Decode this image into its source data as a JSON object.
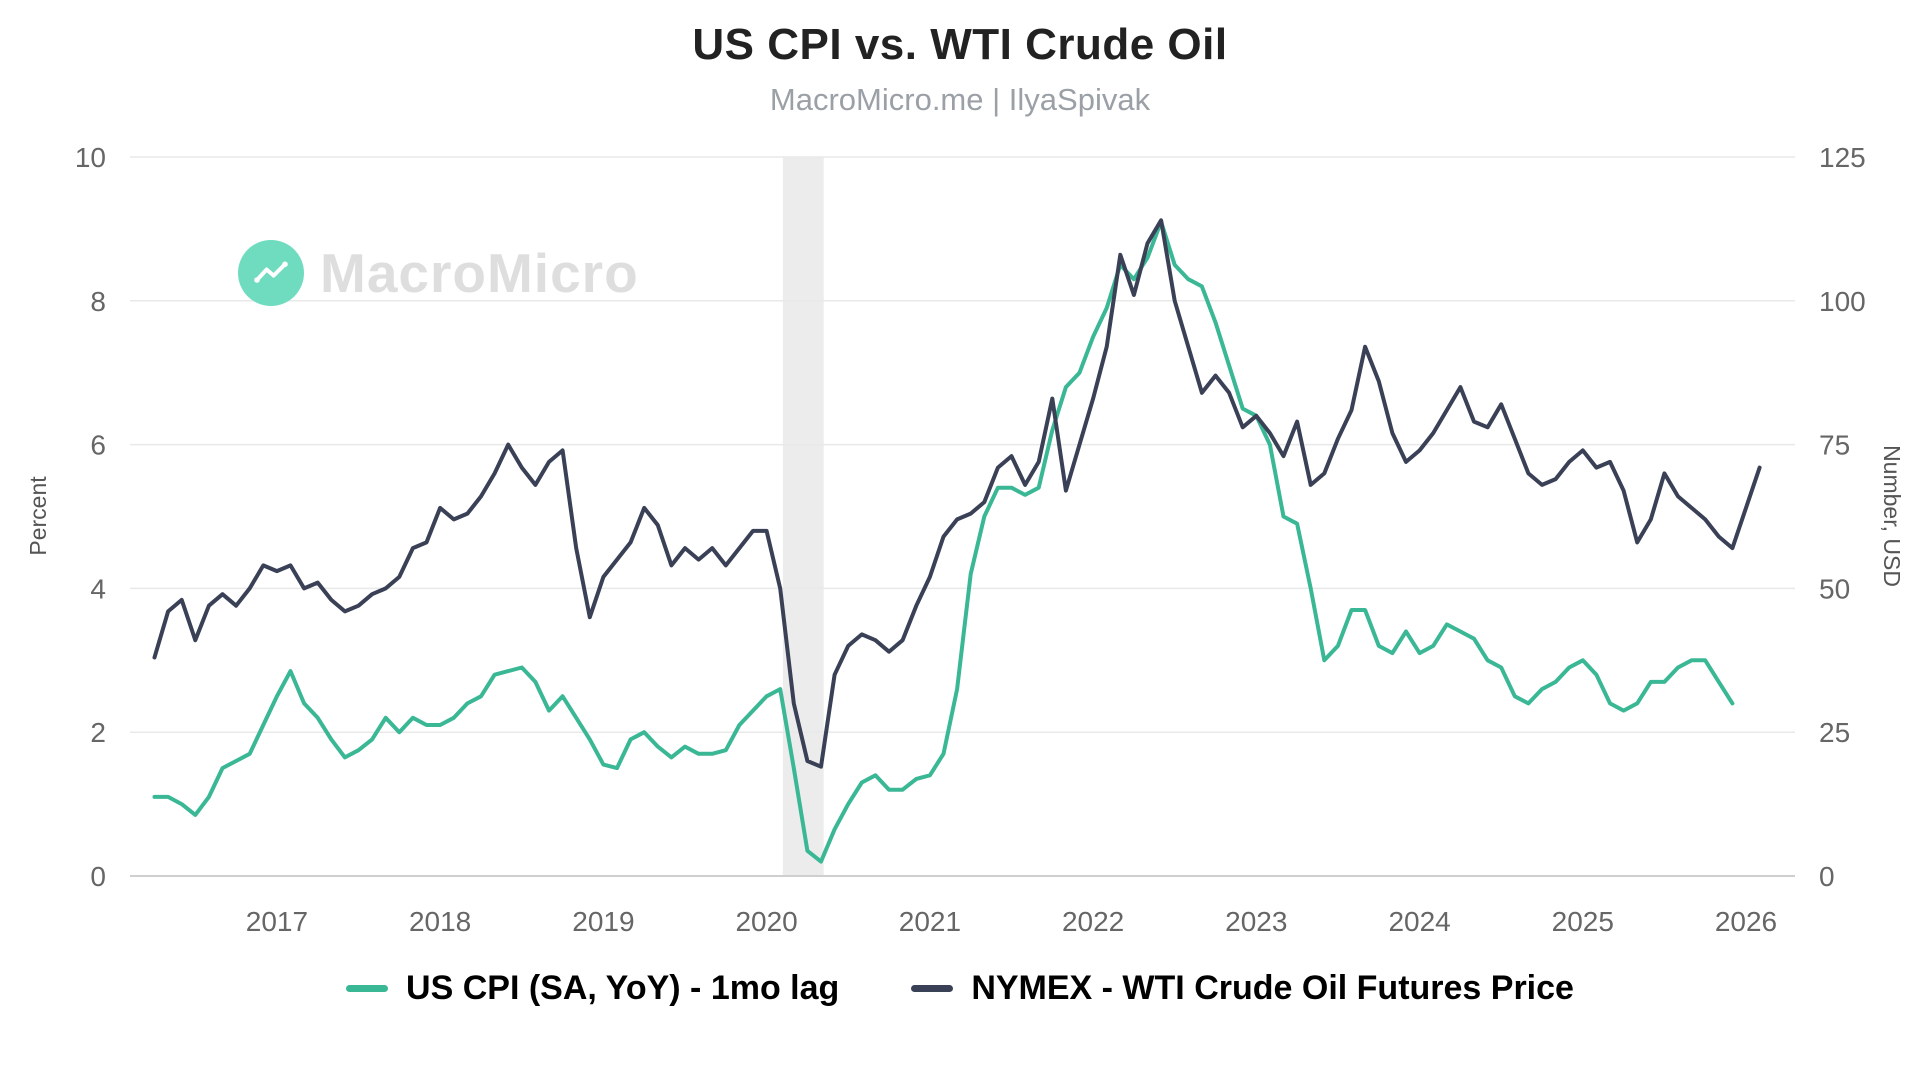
{
  "header": {
    "title": "US CPI vs. WTI Crude Oil",
    "subtitle": "MacroMicro.me | IlyaSpivak"
  },
  "watermark": {
    "text": "MacroMicro"
  },
  "legend": [
    {
      "label": "US CPI (SA, YoY) - 1mo lag",
      "color": "#3ab795"
    },
    {
      "label": "NYMEX - WTI Crude Oil Futures Price",
      "color": "#3a4156"
    }
  ],
  "chart_data": {
    "type": "line",
    "title": "US CPI vs. WTI Crude Oil",
    "subtitle": "MacroMicro.me | IlyaSpivak",
    "grid": "horizontal",
    "legend_position": "bottom",
    "x_range": [
      2016.1,
      2026.3
    ],
    "x_ticks": [
      2017,
      2018,
      2019,
      2020,
      2021,
      2022,
      2023,
      2024,
      2025,
      2026
    ],
    "left_axis": {
      "label": "Percent",
      "range": [
        0,
        10
      ],
      "ticks": [
        0,
        2,
        4,
        6,
        8,
        10
      ]
    },
    "right_axis": {
      "label": "Number, USD",
      "range": [
        0,
        125
      ],
      "ticks": [
        0,
        25,
        50,
        75,
        100,
        125
      ]
    },
    "shaded_region": {
      "x_start": 2020.1,
      "x_end": 2020.35,
      "color": "#ececec"
    },
    "series": [
      {
        "name": "US CPI (SA, YoY) - 1mo lag",
        "axis": "left",
        "color": "#3ab795",
        "x_start": 2016.25,
        "interval_years": 0.08333,
        "values": [
          1.1,
          1.1,
          1.0,
          0.85,
          1.1,
          1.5,
          1.6,
          1.7,
          2.1,
          2.5,
          2.85,
          2.4,
          2.2,
          1.9,
          1.65,
          1.75,
          1.9,
          2.2,
          2.0,
          2.2,
          2.1,
          2.1,
          2.2,
          2.4,
          2.5,
          2.8,
          2.85,
          2.9,
          2.7,
          2.3,
          2.5,
          2.2,
          1.9,
          1.55,
          1.5,
          1.9,
          2.0,
          1.8,
          1.65,
          1.8,
          1.7,
          1.7,
          1.75,
          2.1,
          2.3,
          2.5,
          2.6,
          1.5,
          0.35,
          0.2,
          0.65,
          1.0,
          1.3,
          1.4,
          1.2,
          1.2,
          1.35,
          1.4,
          1.7,
          2.6,
          4.2,
          5.0,
          5.4,
          5.4,
          5.3,
          5.4,
          6.2,
          6.8,
          7.0,
          7.5,
          7.9,
          8.5,
          8.3,
          8.6,
          9.1,
          8.5,
          8.3,
          8.2,
          7.7,
          7.1,
          6.5,
          6.4,
          6.0,
          5.0,
          4.9,
          4.0,
          3.0,
          3.2,
          3.7,
          3.7,
          3.2,
          3.1,
          3.4,
          3.1,
          3.2,
          3.5,
          3.4,
          3.3,
          3.0,
          2.9,
          2.5,
          2.4,
          2.6,
          2.7,
          2.9,
          3.0,
          2.8,
          2.4,
          2.3,
          2.4,
          2.7,
          2.7,
          2.9,
          3.0,
          3.0,
          2.7,
          2.4
        ]
      },
      {
        "name": "NYMEX - WTI Crude Oil Futures Price",
        "axis": "right",
        "color": "#3a4156",
        "x_start": 2016.25,
        "interval_years": 0.08333,
        "values": [
          38,
          46,
          48,
          41,
          47,
          49,
          47,
          50,
          54,
          53,
          54,
          50,
          51,
          48,
          46,
          47,
          49,
          50,
          52,
          57,
          58,
          64,
          62,
          63,
          66,
          70,
          75,
          71,
          68,
          72,
          74,
          57,
          45,
          52,
          55,
          58,
          64,
          61,
          54,
          57,
          55,
          57,
          54,
          57,
          60,
          60,
          50,
          30,
          20,
          19,
          35,
          40,
          42,
          41,
          39,
          41,
          47,
          52,
          59,
          62,
          63,
          65,
          71,
          73,
          68,
          72,
          83,
          67,
          75,
          83,
          92,
          108,
          101,
          110,
          114,
          100,
          92,
          84,
          87,
          84,
          78,
          80,
          77,
          73,
          79,
          68,
          70,
          76,
          81,
          92,
          86,
          77,
          72,
          74,
          77,
          81,
          85,
          79,
          78,
          82,
          76,
          70,
          68,
          69,
          72,
          74,
          71,
          72,
          67,
          58,
          62,
          70,
          66,
          64,
          62,
          59,
          57,
          64,
          71
        ]
      }
    ]
  }
}
